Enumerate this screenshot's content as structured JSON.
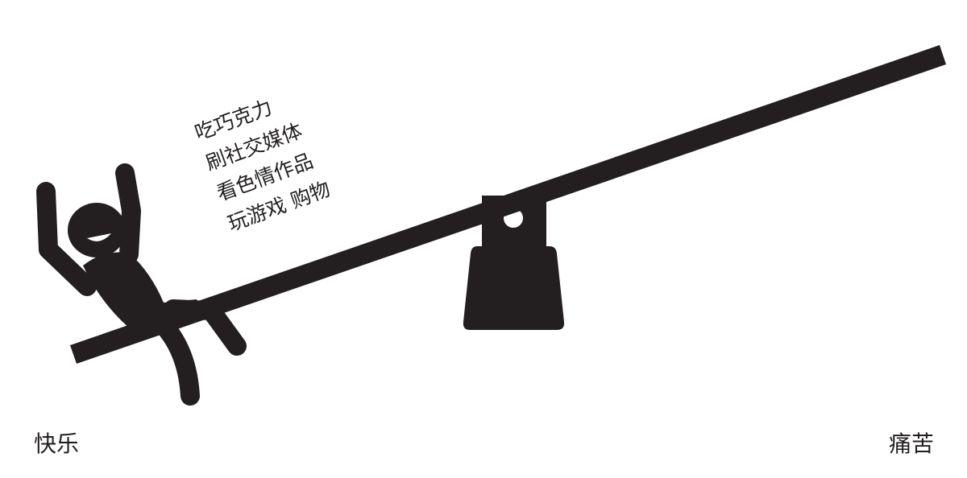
{
  "activities": {
    "lines": [
      "吃巧克力",
      "刷社交媒体",
      "看色情作品",
      "玩游戏  购物"
    ]
  },
  "labels": {
    "left": "快乐",
    "right": "痛苦"
  },
  "colors": {
    "ink": "#231f20",
    "background": "#ffffff"
  }
}
